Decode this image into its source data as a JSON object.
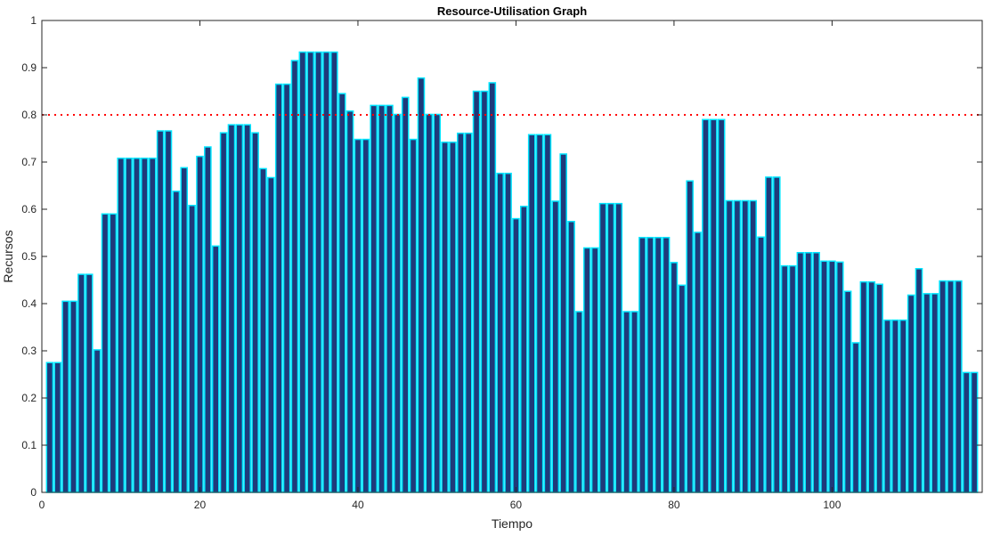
{
  "chart_data": {
    "type": "bar",
    "title": "Resource-Utilisation Graph",
    "xlabel": "Tiempo",
    "ylabel": "Recursos",
    "xlim": [
      0,
      119
    ],
    "ylim": [
      0,
      1
    ],
    "xticks": [
      0,
      20,
      40,
      60,
      80,
      100
    ],
    "yticks": [
      0,
      0.1,
      0.2,
      0.3,
      0.4,
      0.5,
      0.6,
      0.7,
      0.8,
      0.9,
      1
    ],
    "grid": false,
    "bar_face_color": "#1F3A7A",
    "bar_edge_color": "#00E5FF",
    "threshold": {
      "y": 0.8,
      "color": "#FF0000",
      "style": "dotted"
    },
    "x": [
      1,
      2,
      3,
      4,
      5,
      6,
      7,
      8,
      9,
      10,
      11,
      12,
      13,
      14,
      15,
      16,
      17,
      18,
      19,
      20,
      21,
      22,
      23,
      24,
      25,
      26,
      27,
      28,
      29,
      30,
      31,
      32,
      33,
      34,
      35,
      36,
      37,
      38,
      39,
      40,
      41,
      42,
      43,
      44,
      45,
      46,
      47,
      48,
      49,
      50,
      51,
      52,
      53,
      54,
      55,
      56,
      57,
      58,
      59,
      60,
      61,
      62,
      63,
      64,
      65,
      66,
      67,
      68,
      69,
      70,
      71,
      72,
      73,
      74,
      75,
      76,
      77,
      78,
      79,
      80,
      81,
      82,
      83,
      84,
      85,
      86,
      87,
      88,
      89,
      90,
      91,
      92,
      93,
      94,
      95,
      96,
      97,
      98,
      99,
      100,
      101,
      102,
      103,
      104,
      105,
      106,
      107,
      108,
      109,
      110,
      111,
      112,
      113,
      114,
      115,
      116,
      117,
      118
    ],
    "values": [
      0.275,
      0.275,
      0.405,
      0.405,
      0.462,
      0.462,
      0.302,
      0.59,
      0.59,
      0.708,
      0.708,
      0.708,
      0.708,
      0.708,
      0.766,
      0.766,
      0.638,
      0.688,
      0.608,
      0.712,
      0.732,
      0.522,
      0.762,
      0.779,
      0.779,
      0.779,
      0.762,
      0.686,
      0.667,
      0.865,
      0.865,
      0.915,
      0.933,
      0.933,
      0.933,
      0.933,
      0.933,
      0.845,
      0.808,
      0.748,
      0.748,
      0.82,
      0.82,
      0.82,
      0.801,
      0.837,
      0.748,
      0.878,
      0.801,
      0.801,
      0.742,
      0.742,
      0.761,
      0.761,
      0.85,
      0.85,
      0.868,
      0.676,
      0.676,
      0.58,
      0.606,
      0.758,
      0.758,
      0.758,
      0.617,
      0.717,
      0.574,
      0.383,
      0.518,
      0.518,
      0.612,
      0.612,
      0.612,
      0.383,
      0.383,
      0.54,
      0.54,
      0.54,
      0.54,
      0.487,
      0.439,
      0.66,
      0.551,
      0.79,
      0.79,
      0.79,
      0.618,
      0.618,
      0.618,
      0.618,
      0.541,
      0.668,
      0.668,
      0.48,
      0.48,
      0.508,
      0.508,
      0.508,
      0.49,
      0.49,
      0.488,
      0.426,
      0.317,
      0.446,
      0.446,
      0.441,
      0.365,
      0.365,
      0.365,
      0.418,
      0.474,
      0.421,
      0.421,
      0.448,
      0.448,
      0.448,
      0.254,
      0.254
    ]
  }
}
